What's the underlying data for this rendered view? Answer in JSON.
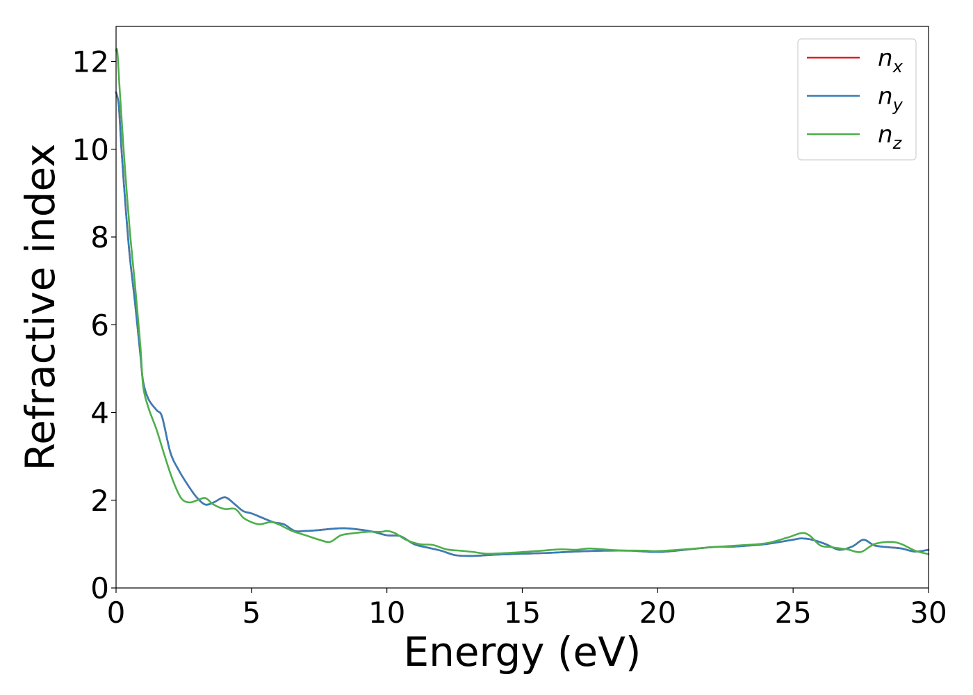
{
  "chart_data": {
    "type": "line",
    "title": "",
    "xlabel": "Energy (eV)",
    "ylabel": "Refractive index",
    "xlim": [
      0,
      30
    ],
    "ylim": [
      0,
      12.8
    ],
    "xticks": [
      0,
      5,
      10,
      15,
      20,
      25,
      30
    ],
    "yticks": [
      0,
      2,
      4,
      6,
      8,
      10,
      12
    ],
    "grid": false,
    "legend_position": "top-right",
    "series": [
      {
        "name": "n_x",
        "legend_base": "n",
        "legend_sub": "x",
        "color": "#e41a1c",
        "x": [
          0,
          0.1,
          0.2,
          0.35,
          0.5,
          0.7,
          0.9,
          1.0,
          1.2,
          1.5,
          1.7,
          2.0,
          2.3,
          2.7,
          3.0,
          3.3,
          3.6,
          3.9,
          4.1,
          4.4,
          4.7,
          5.0,
          5.4,
          5.8,
          6.2,
          6.6,
          7.0,
          7.5,
          8.0,
          8.5,
          9.0,
          9.5,
          10.0,
          10.5,
          11.0,
          11.5,
          12.0,
          12.5,
          13.0,
          13.5,
          14.0,
          15.0,
          16.0,
          17.0,
          18.0,
          19.0,
          20.0,
          21.0,
          22.0,
          23.0,
          24.0,
          25.0,
          25.3,
          25.7,
          26.2,
          26.7,
          27.2,
          27.6,
          28.0,
          28.5,
          29.0,
          29.5,
          30.0
        ],
        "y": [
          11.3,
          11.0,
          10.0,
          8.7,
          7.6,
          6.5,
          5.3,
          4.7,
          4.3,
          4.05,
          3.9,
          3.1,
          2.7,
          2.3,
          2.05,
          1.9,
          1.95,
          2.05,
          2.05,
          1.9,
          1.75,
          1.7,
          1.6,
          1.5,
          1.45,
          1.3,
          1.3,
          1.32,
          1.35,
          1.36,
          1.33,
          1.28,
          1.2,
          1.18,
          1.0,
          0.92,
          0.85,
          0.75,
          0.73,
          0.74,
          0.76,
          0.78,
          0.8,
          0.83,
          0.85,
          0.85,
          0.82,
          0.87,
          0.93,
          0.95,
          1.0,
          1.1,
          1.13,
          1.1,
          1.0,
          0.87,
          0.95,
          1.1,
          0.97,
          0.93,
          0.9,
          0.83,
          0.87
        ]
      },
      {
        "name": "n_y",
        "legend_base": "n",
        "legend_sub": "y",
        "color": "#377eb8",
        "x": [
          0,
          0.1,
          0.2,
          0.35,
          0.5,
          0.7,
          0.9,
          1.0,
          1.2,
          1.5,
          1.7,
          2.0,
          2.3,
          2.7,
          3.0,
          3.3,
          3.6,
          3.9,
          4.1,
          4.4,
          4.7,
          5.0,
          5.4,
          5.8,
          6.2,
          6.6,
          7.0,
          7.5,
          8.0,
          8.5,
          9.0,
          9.5,
          10.0,
          10.5,
          11.0,
          11.5,
          12.0,
          12.5,
          13.0,
          13.5,
          14.0,
          15.0,
          16.0,
          17.0,
          18.0,
          19.0,
          20.0,
          21.0,
          22.0,
          23.0,
          24.0,
          25.0,
          25.3,
          25.7,
          26.2,
          26.7,
          27.2,
          27.6,
          28.0,
          28.5,
          29.0,
          29.5,
          30.0
        ],
        "y": [
          11.3,
          11.0,
          10.0,
          8.7,
          7.6,
          6.5,
          5.3,
          4.7,
          4.3,
          4.05,
          3.9,
          3.1,
          2.7,
          2.3,
          2.05,
          1.9,
          1.95,
          2.05,
          2.05,
          1.9,
          1.75,
          1.7,
          1.6,
          1.5,
          1.45,
          1.3,
          1.3,
          1.32,
          1.35,
          1.36,
          1.33,
          1.28,
          1.2,
          1.18,
          1.0,
          0.92,
          0.85,
          0.75,
          0.73,
          0.74,
          0.76,
          0.78,
          0.8,
          0.83,
          0.85,
          0.85,
          0.82,
          0.87,
          0.93,
          0.95,
          1.0,
          1.1,
          1.13,
          1.1,
          1.0,
          0.87,
          0.95,
          1.1,
          0.97,
          0.93,
          0.9,
          0.83,
          0.87
        ]
      },
      {
        "name": "n_z",
        "legend_base": "n",
        "legend_sub": "z",
        "color": "#4daf4a",
        "x": [
          0,
          0.05,
          0.15,
          0.3,
          0.5,
          0.7,
          0.9,
          1.0,
          1.2,
          1.5,
          1.8,
          2.1,
          2.4,
          2.7,
          3.0,
          3.3,
          3.6,
          4.0,
          4.4,
          4.7,
          5.0,
          5.3,
          5.7,
          6.0,
          6.5,
          7.0,
          7.5,
          7.9,
          8.3,
          8.8,
          9.3,
          9.8,
          10.0,
          10.3,
          10.7,
          11.2,
          11.7,
          12.2,
          12.7,
          13.2,
          13.7,
          14.5,
          15.5,
          16.4,
          17.0,
          17.5,
          18.5,
          19.5,
          20.0,
          21.0,
          22.0,
          23.0,
          24.0,
          24.8,
          25.3,
          25.6,
          26.0,
          26.4,
          27.0,
          27.5,
          28.0,
          28.6,
          29.0,
          29.5,
          30.0
        ],
        "y": [
          12.25,
          12.2,
          11.2,
          9.8,
          8.2,
          6.9,
          5.5,
          4.6,
          4.1,
          3.6,
          3.0,
          2.45,
          2.05,
          1.95,
          2.0,
          2.05,
          1.9,
          1.8,
          1.8,
          1.6,
          1.5,
          1.45,
          1.5,
          1.45,
          1.3,
          1.2,
          1.1,
          1.05,
          1.2,
          1.25,
          1.28,
          1.28,
          1.3,
          1.25,
          1.1,
          1.0,
          0.98,
          0.88,
          0.85,
          0.82,
          0.78,
          0.8,
          0.84,
          0.88,
          0.87,
          0.9,
          0.86,
          0.85,
          0.84,
          0.88,
          0.93,
          0.97,
          1.02,
          1.15,
          1.25,
          1.2,
          0.97,
          0.93,
          0.88,
          0.82,
          1.0,
          1.05,
          1.0,
          0.85,
          0.77
        ]
      }
    ]
  }
}
